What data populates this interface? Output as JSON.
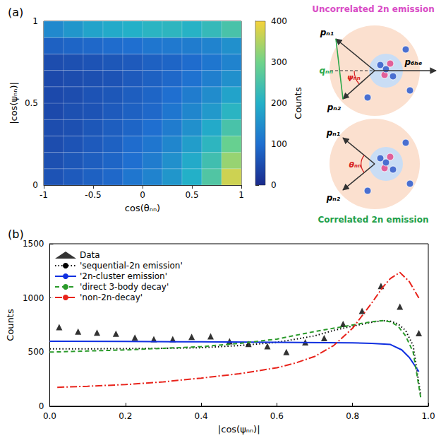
{
  "chart_data": [
    {
      "type": "heatmap",
      "title": "(a)",
      "xlabel": "cos(θₙₙ)",
      "ylabel": "|cos(ψₙₙ)|",
      "x_bins": [
        -1,
        -0.8,
        -0.6,
        -0.4,
        -0.2,
        0,
        0.2,
        0.4,
        0.6,
        0.8,
        1
      ],
      "y_bins": [
        0,
        0.1,
        0.2,
        0.3,
        0.4,
        0.5,
        0.6,
        0.7,
        0.8,
        0.9,
        1
      ],
      "counts": [
        [
          60,
          70,
          80,
          90,
          110,
          130,
          160,
          200,
          260,
          370
        ],
        [
          55,
          65,
          75,
          85,
          100,
          120,
          150,
          190,
          240,
          330
        ],
        [
          50,
          60,
          70,
          80,
          95,
          110,
          135,
          170,
          215,
          290
        ],
        [
          50,
          55,
          65,
          75,
          85,
          100,
          120,
          150,
          190,
          250
        ],
        [
          45,
          55,
          60,
          70,
          80,
          90,
          110,
          135,
          165,
          210
        ],
        [
          45,
          50,
          60,
          65,
          75,
          85,
          100,
          120,
          145,
          180
        ],
        [
          45,
          50,
          55,
          60,
          70,
          80,
          90,
          105,
          125,
          150
        ],
        [
          50,
          55,
          60,
          65,
          70,
          80,
          85,
          95,
          110,
          130
        ],
        [
          80,
          85,
          90,
          95,
          100,
          110,
          115,
          120,
          130,
          150
        ],
        [
          140,
          160,
          180,
          190,
          200,
          210,
          215,
          205,
          225,
          250
        ]
      ],
      "xlim": [
        -1,
        1
      ],
      "xticks": [
        -1,
        -0.5,
        0,
        0.5,
        1
      ],
      "ylim": [
        0,
        1
      ],
      "yticks": [
        0,
        0.5,
        1
      ],
      "color_label": "Counts",
      "color_range": [
        0,
        400
      ],
      "color_ticks": [
        0,
        100,
        200,
        300,
        400
      ],
      "grid": false
    },
    {
      "type": "line",
      "title": "(b)",
      "xlabel": "|cos(ψₙₙ)|",
      "ylabel": "Counts",
      "xlim": [
        0,
        1
      ],
      "xticks": [
        {
          "value": 0,
          "label": "0.0"
        },
        {
          "value": 0.2,
          "label": "0.2"
        },
        {
          "value": 0.4,
          "label": "0.4"
        },
        {
          "value": 0.6,
          "label": "0.6"
        },
        {
          "value": 0.8,
          "label": "0.8"
        },
        {
          "value": 1,
          "label": "1.0"
        }
      ],
      "ylim": [
        0,
        1500
      ],
      "yticks": [
        0,
        500,
        1000,
        1500
      ],
      "grid": false,
      "legend": "upper left",
      "series": [
        {
          "name": "Data",
          "type": "scatter",
          "marker": "triangle",
          "color": "#000000",
          "x": [
            0.025,
            0.075,
            0.125,
            0.175,
            0.225,
            0.275,
            0.325,
            0.375,
            0.425,
            0.475,
            0.525,
            0.575,
            0.625,
            0.675,
            0.725,
            0.775,
            0.825,
            0.875,
            0.925,
            0.975
          ],
          "values": [
            730,
            690,
            680,
            670,
            635,
            620,
            620,
            640,
            645,
            600,
            575,
            555,
            500,
            590,
            630,
            760,
            880,
            1110,
            920,
            675
          ]
        },
        {
          "name": "'sequential-2n emission'",
          "type": "line",
          "line_style": "dotted",
          "color": "#000000",
          "x": [
            0,
            0.1,
            0.2,
            0.3,
            0.4,
            0.5,
            0.6,
            0.7,
            0.75,
            0.8,
            0.85,
            0.88,
            0.9,
            0.92,
            0.94,
            0.96,
            0.98
          ],
          "values": [
            530,
            530,
            532,
            535,
            540,
            560,
            590,
            650,
            700,
            740,
            775,
            790,
            785,
            760,
            700,
            560,
            100
          ]
        },
        {
          "name": "'2n-cluster emission'",
          "type": "line",
          "line_style": "solid",
          "color": "#1030e0",
          "x": [
            0,
            0.2,
            0.4,
            0.6,
            0.8,
            0.85,
            0.9,
            0.93,
            0.95,
            0.975
          ],
          "values": [
            600,
            598,
            595,
            590,
            585,
            580,
            570,
            520,
            450,
            320
          ]
        },
        {
          "name": "'direct 3-body decay'",
          "type": "line",
          "line_style": "dashed",
          "color": "#2a9a2a",
          "x": [
            0,
            0.1,
            0.2,
            0.3,
            0.4,
            0.5,
            0.6,
            0.7,
            0.75,
            0.8,
            0.85,
            0.88,
            0.9,
            0.92,
            0.94,
            0.96,
            0.98
          ],
          "values": [
            500,
            510,
            520,
            535,
            550,
            580,
            620,
            690,
            720,
            750,
            780,
            790,
            780,
            740,
            650,
            500,
            80
          ]
        },
        {
          "name": "'non-2n-decay'",
          "type": "line",
          "line_style": "dashdot",
          "color": "#e8231b",
          "x": [
            0.02,
            0.1,
            0.2,
            0.3,
            0.4,
            0.5,
            0.6,
            0.65,
            0.7,
            0.75,
            0.8,
            0.85,
            0.88,
            0.9,
            0.925,
            0.95,
            0.975
          ],
          "values": [
            175,
            185,
            200,
            225,
            260,
            300,
            355,
            400,
            460,
            560,
            720,
            950,
            1100,
            1180,
            1235,
            1150,
            1000
          ]
        }
      ]
    }
  ],
  "diagrams": [
    {
      "title": "Uncorrelated 2n emission",
      "labels": [
        "pₙ₁",
        "pₙ₂",
        "qₙₙ",
        "ψₙₙ",
        "p₆ₕₑ"
      ]
    },
    {
      "title": "Correlated 2n emission",
      "labels": [
        "pₙ₁",
        "pₙ₂",
        "θₙₙ"
      ]
    }
  ]
}
